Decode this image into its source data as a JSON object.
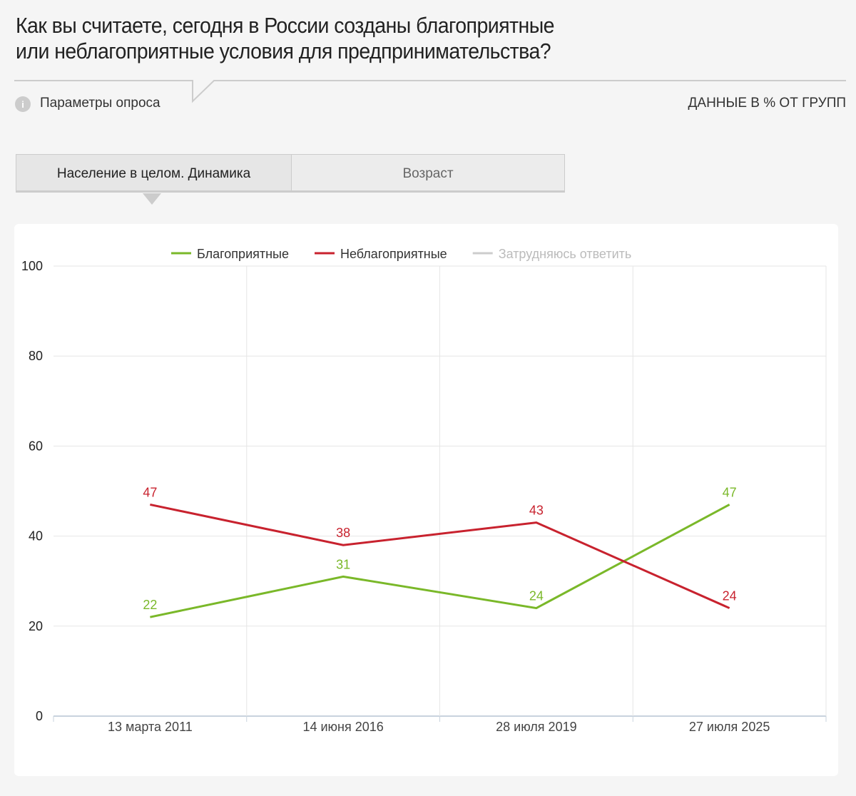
{
  "header": {
    "title_lines": [
      "Как вы считаете, сегодня в России созданы благоприятные",
      "или неблагоприятные условия для предпринимательства?"
    ],
    "survey_params": "Параметры опроса",
    "data_note": "ДАННЫЕ В % ОТ ГРУПП"
  },
  "tabs": [
    {
      "label": "Население в целом. Динамика",
      "active": true
    },
    {
      "label": "Возраст",
      "active": false
    }
  ],
  "chart_data": {
    "type": "line",
    "categories": [
      "13 марта 2011",
      "14 июня 2016",
      "28 июля 2019",
      "27 июля 2025"
    ],
    "series": [
      {
        "name": "Благоприятные",
        "color": "#7ab829",
        "values": [
          22,
          31,
          24,
          47
        ],
        "visible": true
      },
      {
        "name": "Неблагоприятные",
        "color": "#c8222e",
        "values": [
          47,
          38,
          43,
          24
        ],
        "visible": true
      },
      {
        "name": "Затрудняюсь ответить",
        "color": "#cccccc",
        "values": [
          null,
          null,
          null,
          null
        ],
        "visible": false
      }
    ],
    "ylim": [
      0,
      100
    ],
    "yticks": [
      0,
      20,
      40,
      60,
      80,
      100
    ],
    "grid": true,
    "legend": "top"
  }
}
